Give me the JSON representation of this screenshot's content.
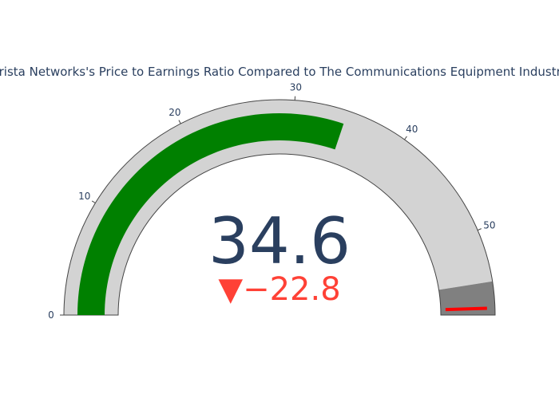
{
  "chart_data": {
    "type": "gauge",
    "title": "Arista Networks's Price to Earnings Ratio Compared to The Communications Equipment Industry",
    "value": 34.6,
    "value_text": "34.6",
    "delta": -22.8,
    "delta_text": "▼−22.8",
    "reference": 57.4,
    "range": [
      0,
      57.4
    ],
    "ticks": [
      0,
      10,
      20,
      30,
      40,
      50
    ],
    "tick_labels": [
      "0",
      "10",
      "20",
      "30",
      "40",
      "50"
    ],
    "steps": [
      {
        "range": [
          0,
          54.53
        ],
        "color": "#d3d3d3"
      },
      {
        "range": [
          54.53,
          57.4
        ],
        "color": "#808080"
      }
    ],
    "bar_color": "#008000",
    "threshold": {
      "value": 56.8,
      "color": "#ff0000"
    },
    "value_color": "#2a3f5f",
    "delta_decreasing_color": "#ff4136"
  }
}
